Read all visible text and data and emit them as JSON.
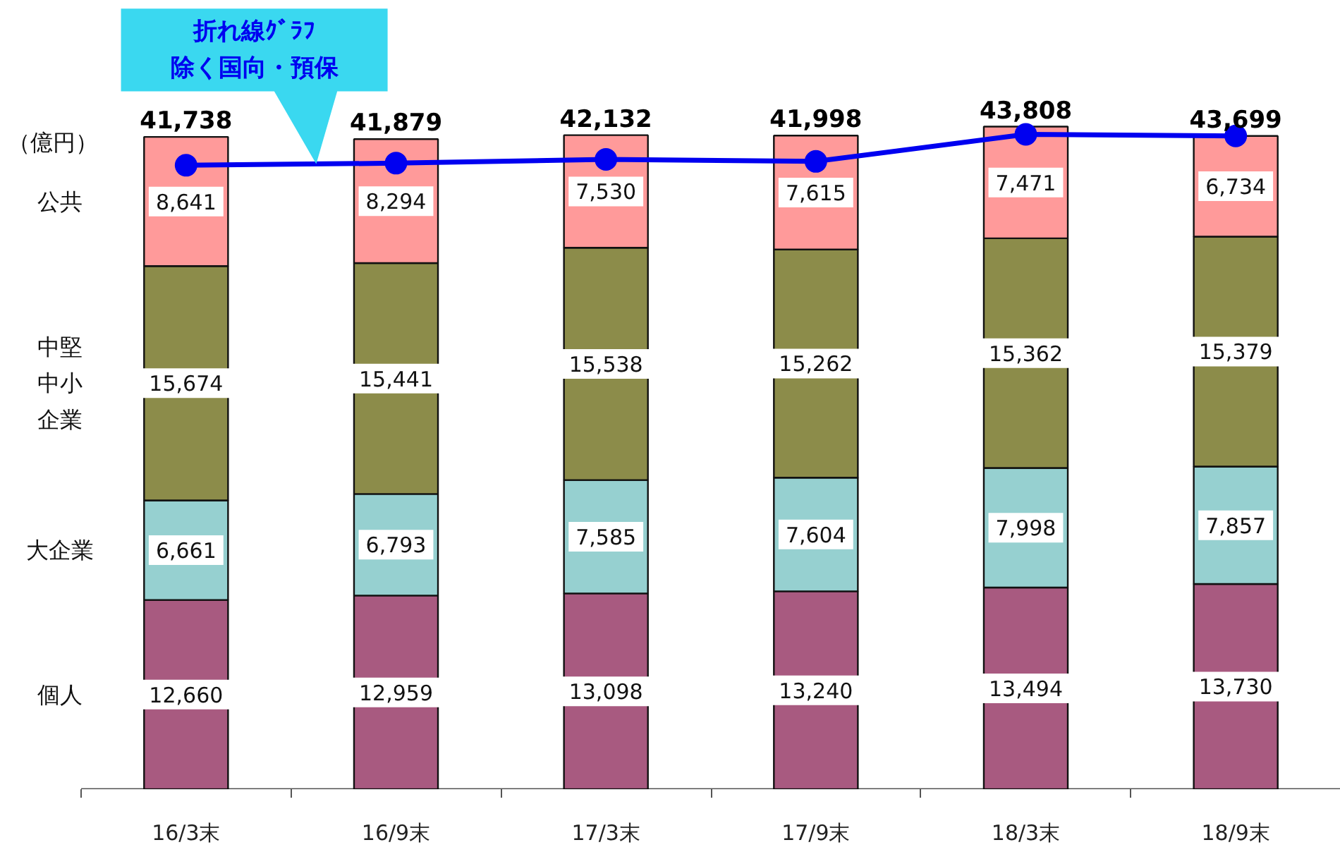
{
  "chart_data": {
    "type": "bar",
    "stacked": true,
    "ylabel": "（億円）",
    "categories": [
      "16/3末",
      "16/9末",
      "17/3末",
      "17/9末",
      "18/3末",
      "18/9末"
    ],
    "series": [
      {
        "name": "個人",
        "color": "#a85a80",
        "values": [
          12660,
          12959,
          13098,
          13240,
          13494,
          13730
        ],
        "value_labels": [
          "12,660",
          "12,959",
          "13,098",
          "13,240",
          "13,494",
          "13,730"
        ]
      },
      {
        "name": "大企業",
        "color": "#96d0d0",
        "values": [
          6661,
          6793,
          7585,
          7604,
          7998,
          7857
        ],
        "value_labels": [
          "6,661",
          "6,793",
          "7,585",
          "7,604",
          "7,998",
          "7,857"
        ]
      },
      {
        "name": "中堅中小企業",
        "color": "#8c8c4a",
        "values": [
          15674,
          15441,
          15538,
          15262,
          15362,
          15379
        ],
        "value_labels": [
          "15,674",
          "15,441",
          "15,538",
          "15,262",
          "15,362",
          "15,379"
        ]
      },
      {
        "name": "公共",
        "color": "#ff9a9a",
        "values": [
          8641,
          8294,
          7530,
          7615,
          7471,
          6734
        ],
        "value_labels": [
          "8,641",
          "8,294",
          "7,530",
          "7,615",
          "7,471",
          "6,734"
        ]
      },
      {
        "name": "折れ線ｸﾞﾗﾌ除く国向・預保",
        "type": "line",
        "color": "#0000f0",
        "marker": "circle",
        "values": [
          41738,
          41879,
          42132,
          41998,
          43808,
          43699
        ],
        "value_labels": [
          "41,738",
          "41,879",
          "42,132",
          "41,998",
          "43,808",
          "43,699"
        ]
      }
    ]
  }
}
